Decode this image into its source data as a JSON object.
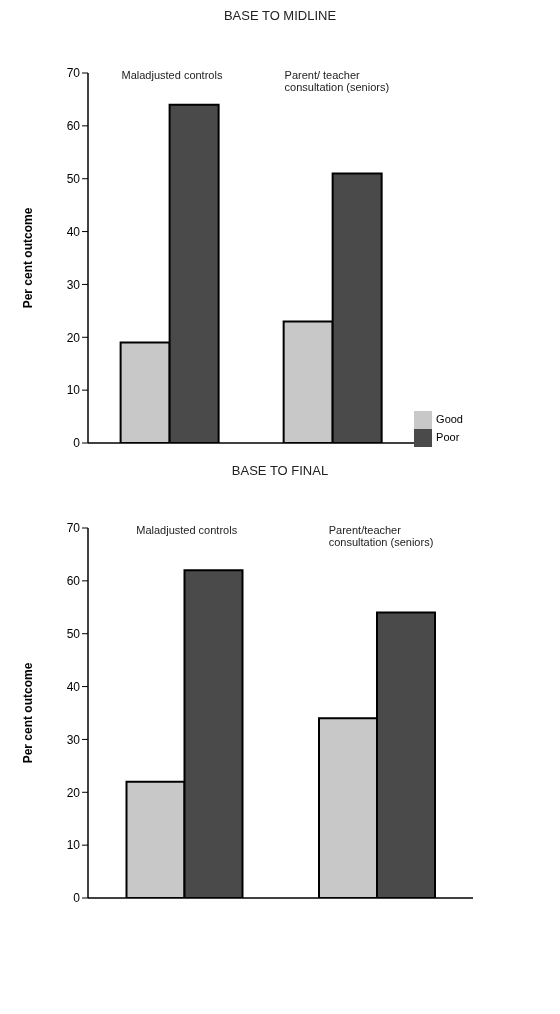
{
  "chart_data": [
    {
      "type": "bar",
      "title": "BASE TO MIDLINE",
      "ylabel": "Per cent outcome",
      "categories": [
        "Maladjusted controls",
        "Parent/ teacher consultation (seniors)"
      ],
      "series": [
        {
          "name": "Good",
          "color": "#c8c8c8",
          "values": [
            19,
            23
          ]
        },
        {
          "name": "Poor",
          "color": "#4a4a4a",
          "values": [
            64,
            51
          ]
        }
      ],
      "ylim": [
        0,
        70
      ],
      "yticks": [
        0,
        10,
        20,
        30,
        40,
        50,
        60,
        70
      ],
      "grid": false,
      "legend": "bottom right"
    },
    {
      "type": "bar",
      "title": "BASE TO FINAL",
      "ylabel": "Per cent outcome",
      "categories": [
        "Maladjusted controls",
        "Parent/teacher consultation (seniors)"
      ],
      "series": [
        {
          "color": "#c8c8c8",
          "values": [
            22,
            34
          ]
        },
        {
          "color": "#4a4a4a",
          "values": [
            62,
            54
          ]
        }
      ],
      "ylim": [
        0,
        70
      ],
      "yticks": [
        0,
        10,
        20,
        30,
        40,
        50,
        60,
        70
      ],
      "grid": false
    }
  ]
}
